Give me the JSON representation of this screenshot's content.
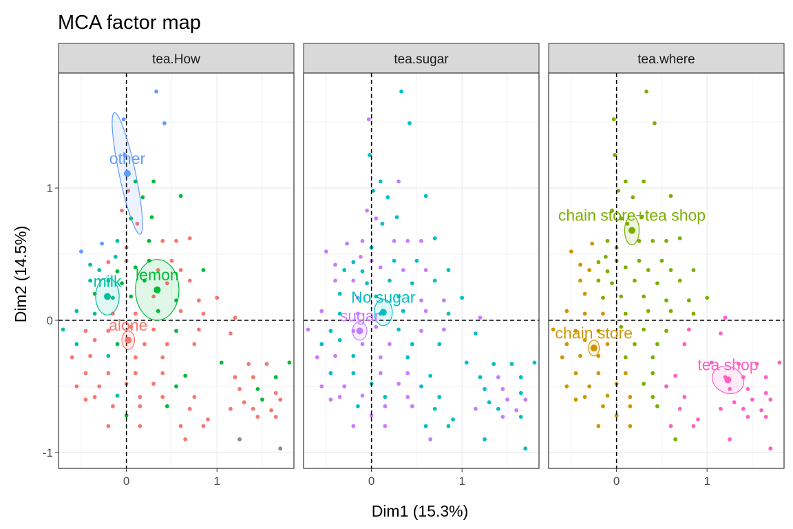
{
  "chart_data": {
    "type": "scatter",
    "title": "MCA factor map",
    "xlabel": "Dim1 (15.3%)",
    "ylabel": "Dim2 (14.5%)",
    "xlim": [
      -0.75,
      1.85
    ],
    "ylim": [
      -1.12,
      1.87
    ],
    "x_ticks": [
      0,
      1
    ],
    "x_tick_labels": [
      "0",
      "1"
    ],
    "y_ticks": [
      -1,
      0,
      1
    ],
    "y_tick_labels": [
      "-1",
      "0",
      "1"
    ],
    "grid": true,
    "reference_lines": {
      "x": 0,
      "y": 0,
      "style": "dashed"
    },
    "legend": "none",
    "colors": {
      "alone": "#F8766D",
      "lemon": "#00BA38",
      "milk": "#00BFA0",
      "other": "#619CFF",
      "No.sugar": "#00BFC4",
      "sugar": "#C77CFF",
      "chain store": "#CD9600",
      "chain store+tea shop": "#7CAE00",
      "tea shop": "#FF61C3"
    },
    "individuals": [
      [
        0.33,
        1.73
      ],
      [
        -0.03,
        1.52
      ],
      [
        0.42,
        1.49
      ],
      [
        -0.02,
        1.25
      ],
      [
        0.1,
        1.05
      ],
      [
        0.3,
        1.05
      ],
      [
        0.02,
        0.98
      ],
      [
        0.18,
        0.93
      ],
      [
        0.6,
        0.94
      ],
      [
        -0.05,
        0.83
      ],
      [
        0.28,
        0.78
      ],
      [
        0.05,
        0.77
      ],
      [
        0.12,
        0.73
      ],
      [
        -0.1,
        0.6
      ],
      [
        0.0,
        0.55
      ],
      [
        0.25,
        0.6
      ],
      [
        0.4,
        0.6
      ],
      [
        0.55,
        0.6
      ],
      [
        0.7,
        0.62
      ],
      [
        -0.27,
        0.58
      ],
      [
        -0.5,
        0.52
      ],
      [
        -0.12,
        0.48
      ],
      [
        0.0,
        0.45
      ],
      [
        0.25,
        0.45
      ],
      [
        0.5,
        0.45
      ],
      [
        -0.4,
        0.42
      ],
      [
        -0.2,
        0.44
      ],
      [
        -0.3,
        0.38
      ],
      [
        -0.1,
        0.37
      ],
      [
        0.1,
        0.4
      ],
      [
        0.35,
        0.38
      ],
      [
        0.6,
        0.38
      ],
      [
        0.85,
        0.38
      ],
      [
        -0.4,
        0.3
      ],
      [
        -0.2,
        0.3
      ],
      [
        -0.05,
        0.28
      ],
      [
        0.2,
        0.3
      ],
      [
        0.45,
        0.28
      ],
      [
        0.7,
        0.3
      ],
      [
        -0.35,
        0.2
      ],
      [
        -0.15,
        0.17
      ],
      [
        0.05,
        0.18
      ],
      [
        0.3,
        0.18
      ],
      [
        0.55,
        0.15
      ],
      [
        0.8,
        0.15
      ],
      [
        1.0,
        0.17
      ],
      [
        -0.55,
        0.07
      ],
      [
        -0.35,
        0.05
      ],
      [
        -0.15,
        0.05
      ],
      [
        0.1,
        0.05
      ],
      [
        0.35,
        0.07
      ],
      [
        0.6,
        0.07
      ],
      [
        0.85,
        0.05
      ],
      [
        1.2,
        0.02
      ],
      [
        -0.7,
        -0.07
      ],
      [
        -0.45,
        -0.08
      ],
      [
        -0.2,
        -0.08
      ],
      [
        0.05,
        -0.05
      ],
      [
        0.3,
        -0.07
      ],
      [
        0.55,
        -0.08
      ],
      [
        0.8,
        -0.07
      ],
      [
        1.15,
        -0.1
      ],
      [
        -0.55,
        -0.18
      ],
      [
        -0.35,
        -0.15
      ],
      [
        -0.1,
        -0.18
      ],
      [
        0.2,
        -0.18
      ],
      [
        0.45,
        -0.18
      ],
      [
        0.75,
        -0.18
      ],
      [
        -0.6,
        -0.28
      ],
      [
        -0.4,
        -0.27
      ],
      [
        -0.2,
        -0.27
      ],
      [
        0.1,
        -0.28
      ],
      [
        0.4,
        -0.28
      ],
      [
        1.05,
        -0.32
      ],
      [
        1.35,
        -0.33
      ],
      [
        1.55,
        -0.33
      ],
      [
        1.8,
        -0.32
      ],
      [
        -0.45,
        -0.4
      ],
      [
        -0.2,
        -0.4
      ],
      [
        0.1,
        -0.4
      ],
      [
        0.4,
        -0.4
      ],
      [
        0.65,
        -0.42
      ],
      [
        1.2,
        -0.43
      ],
      [
        1.4,
        -0.43
      ],
      [
        1.65,
        -0.43
      ],
      [
        -0.55,
        -0.5
      ],
      [
        -0.3,
        -0.5
      ],
      [
        0.0,
        -0.48
      ],
      [
        0.3,
        -0.48
      ],
      [
        0.55,
        -0.5
      ],
      [
        1.25,
        -0.52
      ],
      [
        1.45,
        -0.52
      ],
      [
        1.65,
        -0.55
      ],
      [
        -0.35,
        -0.58
      ],
      [
        -0.1,
        -0.57
      ],
      [
        0.15,
        -0.58
      ],
      [
        0.4,
        -0.58
      ],
      [
        0.75,
        -0.58
      ],
      [
        1.3,
        -0.62
      ],
      [
        1.5,
        -0.6
      ],
      [
        1.7,
        -0.6
      ],
      [
        -0.45,
        -0.6
      ],
      [
        -0.15,
        -0.65
      ],
      [
        0.15,
        -0.65
      ],
      [
        0.45,
        -0.65
      ],
      [
        0.7,
        -0.67
      ],
      [
        1.15,
        -0.67
      ],
      [
        1.4,
        -0.67
      ],
      [
        1.6,
        -0.68
      ],
      [
        0.0,
        -0.72
      ],
      [
        0.9,
        -0.75
      ],
      [
        1.45,
        -0.73
      ],
      [
        1.65,
        -0.73
      ],
      [
        -0.2,
        -0.8
      ],
      [
        0.15,
        -0.8
      ],
      [
        0.6,
        -0.8
      ],
      [
        0.85,
        -0.8
      ],
      [
        0.65,
        -0.9
      ],
      [
        1.25,
        -0.9
      ],
      [
        1.7,
        -0.97
      ]
    ],
    "panels": [
      {
        "title": "tea.How",
        "categories": [
          {
            "name": "alone",
            "color": "#F8766D",
            "center": [
              0.02,
              -0.15
            ],
            "ellipse": {
              "rx": 0.07,
              "ry": 0.07,
              "angle": 0
            }
          },
          {
            "name": "lemon",
            "color": "#00BA38",
            "center": [
              0.34,
              0.23
            ],
            "ellipse": {
              "rx": 0.24,
              "ry": 0.23,
              "angle": 0
            }
          },
          {
            "name": "milk",
            "color": "#00BFA0",
            "center": [
              -0.21,
              0.18
            ],
            "ellipse": {
              "rx": 0.13,
              "ry": 0.14,
              "angle": 0
            }
          },
          {
            "name": "other",
            "color": "#619CFF",
            "center": [
              0.01,
              1.11
            ],
            "ellipse": {
              "rx": 0.09,
              "ry": 0.47,
              "angle": -12
            }
          }
        ]
      },
      {
        "title": "tea.sugar",
        "categories": [
          {
            "name": "No.sugar",
            "label": "No sugar",
            "color": "#00BFC4",
            "center": [
              0.13,
              0.06
            ],
            "ellipse": {
              "rx": 0.1,
              "ry": 0.1,
              "angle": 0
            }
          },
          {
            "name": "sugar",
            "color": "#C77CFF",
            "center": [
              -0.13,
              -0.08
            ],
            "ellipse": {
              "rx": 0.08,
              "ry": 0.07,
              "angle": 0
            }
          }
        ]
      },
      {
        "title": "tea.where",
        "categories": [
          {
            "name": "chain store",
            "color": "#CD9600",
            "center": [
              -0.25,
              -0.21
            ],
            "ellipse": {
              "rx": 0.06,
              "ry": 0.06,
              "angle": 0
            }
          },
          {
            "name": "chain store+tea shop",
            "color": "#7CAE00",
            "center": [
              0.17,
              0.68
            ],
            "ellipse": {
              "rx": 0.08,
              "ry": 0.11,
              "angle": 0
            }
          },
          {
            "name": "tea shop",
            "color": "#FF61C3",
            "center": [
              1.23,
              -0.45
            ],
            "ellipse": {
              "rx": 0.18,
              "ry": 0.1,
              "angle": 25
            }
          }
        ]
      }
    ],
    "point_colors": {
      "tea.How": [
        "#619CFF",
        "#619CFF",
        "#619CFF",
        "#619CFF",
        "#00BA38",
        "#00BA38",
        "#F8766D",
        "#00BA38",
        "#00BA38",
        "#F8766D",
        "#00BA38",
        "#00BA38",
        "#F8766D",
        "#00BFA0",
        "#F8766D",
        "#00BA38",
        "#F8766D",
        "#F8766D",
        "#F8766D",
        "#619CFF",
        "#619CFF",
        "#00BFA0",
        "#F8766D",
        "#00BA38",
        "#F8766D",
        "#00BFA0",
        "#F8766D",
        "#00BFA0",
        "#00BA38",
        "#00BA38",
        "#F8766D",
        "#F8766D",
        "#00BA38",
        "#00BFA0",
        "#00BFA0",
        "#00BA38",
        "#00BA38",
        "#F8766D",
        "#F8766D",
        "#00BA38",
        "#00BFA0",
        "#00BA38",
        "#F8766D",
        "#00BA38",
        "#F8766D",
        "#F8766D",
        "#00BFA0",
        "#00BFA0",
        "#F8766D",
        "#F8766D",
        "#00BA38",
        "#F8766D",
        "#F8766D",
        "#F8766D",
        "#00BFA0",
        "#F8766D",
        "#F8766D",
        "#F8766D",
        "#F8766D",
        "#00BA38",
        "#F8766D",
        "#F8766D",
        "#00BFA0",
        "#F8766D",
        "#00BA38",
        "#F8766D",
        "#F8766D",
        "#F8766D",
        "#F8766D",
        "#F8766D",
        "#00BFA0",
        "#F8766D",
        "#F8766D",
        "#00BA38",
        "#F8766D",
        "#F8766D",
        "#00BA38",
        "#F8766D",
        "#F8766D",
        "#F8766D",
        "#F8766D",
        "#00BA38",
        "#F8766D",
        "#F8766D",
        "#00BA38",
        "#F8766D",
        "#F8766D",
        "#F8766D",
        "#F8766D",
        "#00BA38",
        "#F8766D",
        "#00BA38",
        "#F8766D",
        "#F8766D",
        "#00BFA0",
        "#F8766D",
        "#F8766D",
        "#F8766D",
        "#F8766D",
        "#00BA38",
        "#F8766D",
        "#F8766D",
        "#F8766D",
        "#F8766D",
        "#00BA38",
        "#F8766D",
        "#F8766D",
        "#F8766D",
        "#F8766D",
        "#00BA38",
        "#F8766D",
        "#F8766D",
        "#F8766D",
        "#F8766D",
        "#F8766D",
        "#F8766D",
        "#F8766D",
        "#F8766D"
      ],
      "tea.sugar": [
        "#00BFC4",
        "#C77CFF",
        "#00BFC4",
        "#00BFC4",
        "#00BFC4",
        "#C77CFF",
        "#00BFC4",
        "#00BFC4",
        "#00BFC4",
        "#C77CFF",
        "#00BFC4",
        "#C77CFF",
        "#00BFC4",
        "#C77CFF",
        "#00BFC4",
        "#C77CFF",
        "#C77CFF",
        "#C77CFF",
        "#00BFC4",
        "#C77CFF",
        "#C77CFF",
        "#C77CFF",
        "#C77CFF",
        "#00BFC4",
        "#00BFC4",
        "#C77CFF",
        "#00BFC4",
        "#00BFC4",
        "#00BFC4",
        "#C77CFF",
        "#C77CFF",
        "#C77CFF",
        "#00BFC4",
        "#C77CFF",
        "#C77CFF",
        "#00BFC4",
        "#00BFC4",
        "#00BFC4",
        "#00BFC4",
        "#00BFC4",
        "#C77CFF",
        "#00BFC4",
        "#00BFC4",
        "#C77CFF",
        "#C77CFF",
        "#00BFC4",
        "#C77CFF",
        "#00BFC4",
        "#C77CFF",
        "#00BFC4",
        "#00BFC4",
        "#C77CFF",
        "#00BFC4",
        "#C77CFF",
        "#C77CFF",
        "#00BFC4",
        "#C77CFF",
        "#C77CFF",
        "#00BFC4",
        "#C77CFF",
        "#C77CFF",
        "#00BFC4",
        "#00BFC4",
        "#00BFC4",
        "#C77CFF",
        "#C77CFF",
        "#00BFC4",
        "#00BFC4",
        "#C77CFF",
        "#C77CFF",
        "#00BFC4",
        "#C77CFF",
        "#00BFC4",
        "#00BFC4",
        "#00BFC4",
        "#00BFC4",
        "#00BFC4",
        "#00BFC4",
        "#00BFC4",
        "#C77CFF",
        "#C77CFF",
        "#00BFC4",
        "#00BFC4",
        "#C77CFF",
        "#00BFC4",
        "#C77CFF",
        "#C77CFF",
        "#00BFC4",
        "#C77CFF",
        "#00BFC4",
        "#00BFC4",
        "#C77CFF",
        "#00BFC4",
        "#C77CFF",
        "#C77CFF",
        "#00BFC4",
        "#C77CFF",
        "#00BFC4",
        "#00BFC4",
        "#C77CFF",
        "#C77CFF",
        "#C77CFF",
        "#00BFC4",
        "#C77CFF",
        "#C77CFF",
        "#00BFC4",
        "#C77CFF",
        "#00BFC4",
        "#C77CFF",
        "#C77CFF",
        "#00BFC4",
        "#C77CFF",
        "#00BFC4",
        "#C77CFF",
        "#C77CFF",
        "#00BFC4",
        "#00BFC4",
        "#C77CFF",
        "#00BFC4",
        "#00BFC4",
        "#00BFC4",
        "#00BFC4"
      ],
      "tea.where": [
        "#7CAE00",
        "#7CAE00",
        "#7CAE00",
        "#7CAE00",
        "#7CAE00",
        "#7CAE00",
        "#7CAE00",
        "#7CAE00",
        "#7CAE00",
        "#7CAE00",
        "#7CAE00",
        "#7CAE00",
        "#7CAE00",
        "#7CAE00",
        "#7CAE00",
        "#7CAE00",
        "#7CAE00",
        "#7CAE00",
        "#7CAE00",
        "#CD9600",
        "#CD9600",
        "#7CAE00",
        "#7CAE00",
        "#7CAE00",
        "#7CAE00",
        "#CD9600",
        "#7CAE00",
        "#CD9600",
        "#7CAE00",
        "#7CAE00",
        "#7CAE00",
        "#7CAE00",
        "#7CAE00",
        "#CD9600",
        "#7CAE00",
        "#7CAE00",
        "#7CAE00",
        "#7CAE00",
        "#7CAE00",
        "#CD9600",
        "#7CAE00",
        "#7CAE00",
        "#7CAE00",
        "#7CAE00",
        "#7CAE00",
        "#7CAE00",
        "#CD9600",
        "#CD9600",
        "#CD9600",
        "#7CAE00",
        "#7CAE00",
        "#7CAE00",
        "#7CAE00",
        "#FF61C3",
        "#CD9600",
        "#CD9600",
        "#CD9600",
        "#7CAE00",
        "#7CAE00",
        "#7CAE00",
        "#FF61C3",
        "#FF61C3",
        "#CD9600",
        "#CD9600",
        "#CD9600",
        "#7CAE00",
        "#7CAE00",
        "#FF61C3",
        "#CD9600",
        "#CD9600",
        "#CD9600",
        "#7CAE00",
        "#7CAE00",
        "#FF61C3",
        "#FF61C3",
        "#FF61C3",
        "#FF61C3",
        "#CD9600",
        "#CD9600",
        "#CD9600",
        "#7CAE00",
        "#FF61C3",
        "#FF61C3",
        "#FF61C3",
        "#FF61C3",
        "#CD9600",
        "#CD9600",
        "#CD9600",
        "#7CAE00",
        "#FF61C3",
        "#FF61C3",
        "#FF61C3",
        "#FF61C3",
        "#CD9600",
        "#CD9600",
        "#CD9600",
        "#7CAE00",
        "#FF61C3",
        "#FF61C3",
        "#FF61C3",
        "#FF61C3",
        "#CD9600",
        "#CD9600",
        "#CD9600",
        "#7CAE00",
        "#FF61C3",
        "#FF61C3",
        "#FF61C3",
        "#FF61C3",
        "#CD9600",
        "#FF61C3",
        "#FF61C3",
        "#FF61C3",
        "#CD9600",
        "#CD9600",
        "#FF61C3",
        "#FF61C3",
        "#7CAE00",
        "#FF61C3",
        "#FF61C3"
      ]
    }
  }
}
